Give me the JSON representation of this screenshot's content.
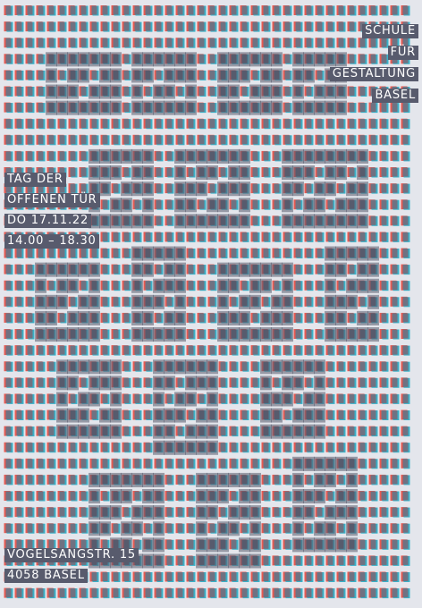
{
  "poster": {
    "colors": {
      "background": "#e4e6ec",
      "red": "#e85a52",
      "teal": "#3ab1c8",
      "slate": "#585b6d",
      "text": "#ffffff"
    },
    "school_lines": [
      "SCHULE",
      "FÜR",
      "GESTALTUNG",
      "BASEL"
    ],
    "event_lines": [
      "TAG DER",
      "OFFENEN TÜR",
      "DO 17.11.22",
      "14.00 – 18.30"
    ],
    "address_lines": [
      "VOGELSANGSTR. 15",
      "4058 BASEL"
    ]
  }
}
